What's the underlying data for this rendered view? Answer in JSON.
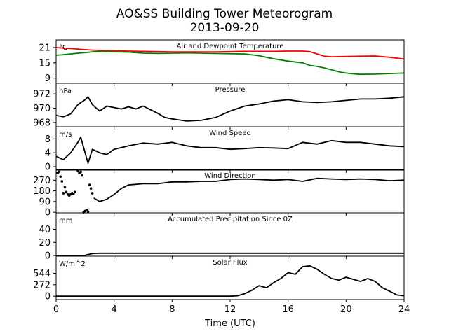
{
  "chart_data": {
    "type": "line",
    "title": "AO&SS Building Tower Meteorogram",
    "subtitle": "2013-09-20",
    "xlabel": "Time (UTC)",
    "x_ticks": [
      0,
      4,
      8,
      12,
      16,
      20,
      24
    ],
    "xlim": [
      0,
      24
    ],
    "panels": [
      {
        "title": "Air and Dewpoint Temperature",
        "unit": "°C",
        "ylim": [
          7,
          24
        ],
        "yticks": [
          9,
          15,
          21
        ],
        "series": [
          {
            "color": "#ff0000",
            "style": "line",
            "x": [
              0,
              0.5,
              1,
              1.5,
              2,
              2.5,
              3,
              4,
              5,
              6,
              7,
              8,
              9,
              10,
              11,
              12,
              13,
              14,
              15,
              16,
              17,
              17.5,
              18,
              18.5,
              19,
              20,
              21,
              22,
              23,
              24
            ],
            "y": [
              21,
              20.8,
              20.6,
              20.4,
              20.2,
              20,
              19.9,
              19.7,
              19.6,
              19.5,
              19.4,
              19.3,
              19.3,
              19.3,
              19.3,
              19.4,
              19.5,
              19.5,
              19.5,
              19.6,
              19.6,
              19.4,
              18.5,
              17.6,
              17.4,
              17.5,
              17.6,
              17.7,
              17.2,
              16.5
            ]
          },
          {
            "color": "#008000",
            "style": "line",
            "x": [
              0,
              0.5,
              1,
              1.5,
              2,
              2.5,
              3,
              4,
              5,
              6,
              7,
              8,
              9,
              10,
              11,
              12,
              13,
              14,
              15,
              16,
              17,
              17.5,
              18,
              18.5,
              19,
              19.5,
              20,
              20.5,
              21,
              22,
              23,
              24
            ],
            "y": [
              18,
              18.2,
              18.5,
              18.8,
              19,
              19.3,
              19.5,
              19.3,
              19.2,
              18.8,
              18.7,
              18.8,
              18.9,
              18.8,
              18.7,
              18.6,
              18.5,
              17.8,
              16.6,
              15.7,
              15,
              14,
              13.6,
              13,
              12.3,
              11.5,
              11,
              10.7,
              10.5,
              10.6,
              10.8,
              11
            ]
          }
        ]
      },
      {
        "title": "Pressure",
        "unit": "hPa",
        "ylim": [
          967.4,
          973.5
        ],
        "yticks": [
          968,
          970,
          972
        ],
        "series": [
          {
            "color": "#000000",
            "style": "line",
            "x": [
              0,
              0.5,
              1,
              1.5,
              2,
              2.2,
              2.5,
              3,
              3.5,
              4,
              4.5,
              5,
              5.5,
              6,
              6.5,
              7,
              7.5,
              8,
              9,
              10,
              11,
              12,
              13,
              14,
              15,
              16,
              17,
              18,
              19,
              20,
              21,
              22,
              23,
              24
            ],
            "y": [
              969,
              968.8,
              969.2,
              970.5,
              971.2,
              971.6,
              970.5,
              969.6,
              970.3,
              970.1,
              969.9,
              970.2,
              969.9,
              970.3,
              969.8,
              969.3,
              968.7,
              968.5,
              968.2,
              968.3,
              968.7,
              969.6,
              970.3,
              970.6,
              971,
              971.2,
              970.9,
              970.8,
              970.9,
              971.1,
              971.3,
              971.3,
              971.4,
              971.6
            ]
          }
        ]
      },
      {
        "title": "Wind Speed",
        "unit": "m/s",
        "ylim": [
          -1,
          11.5
        ],
        "yticks": [
          0,
          4,
          8
        ],
        "series": [
          {
            "color": "#000000",
            "style": "line",
            "x": [
              0,
              0.5,
              1,
              1.5,
              1.7,
              2,
              2.2,
              2.5,
              3,
              3.5,
              4,
              5,
              6,
              7,
              8,
              9,
              10,
              11,
              12,
              13,
              14,
              15,
              16,
              17,
              18,
              19,
              20,
              21,
              22,
              23,
              24
            ],
            "y": [
              3,
              2,
              4,
              7,
              8.5,
              4,
              1,
              5,
              4,
              3.5,
              5,
              6,
              6.8,
              6.5,
              7,
              6,
              5.5,
              5.5,
              5,
              5.2,
              5.5,
              5.4,
              5.2,
              7,
              6.5,
              7.5,
              7,
              7,
              6.5,
              6,
              5.8
            ]
          }
        ]
      },
      {
        "title": "Wind Direction",
        "unit": "",
        "ylim": [
          -5,
          360
        ],
        "yticks": [
          0,
          90,
          180,
          270
        ],
        "series": [
          {
            "color": "#000000",
            "style": "line",
            "x": [
              2.6,
              3,
              3.5,
              4,
              4.5,
              5,
              6,
              7,
              8,
              9,
              10,
              11,
              12,
              13,
              14,
              15,
              16,
              17,
              18,
              19,
              20,
              21,
              22,
              23,
              24
            ],
            "y": [
              120,
              90,
              110,
              150,
              200,
              230,
              240,
              240,
              255,
              255,
              260,
              260,
              275,
              280,
              275,
              270,
              275,
              260,
              285,
              280,
              275,
              280,
              275,
              265,
              270
            ]
          },
          {
            "color": "#000000",
            "style": "markers",
            "x": [
              0.1,
              0.2,
              0.3,
              0.4,
              0.5,
              0.6,
              0.7,
              0.8,
              0.9,
              1.0,
              1.1,
              1.2,
              1.3,
              1.5,
              1.6,
              1.7,
              1.8,
              1.9,
              2.0,
              2.1,
              2.2,
              2.3,
              2.4,
              2.5
            ],
            "y": [
              330,
              340,
              300,
              260,
              160,
              210,
              170,
              150,
              140,
              150,
              160,
              155,
              170,
              350,
              330,
              340,
              310,
              0,
              10,
              20,
              5,
              230,
              200,
              160
            ]
          }
        ]
      },
      {
        "title": "Accumulated Precipitation Since 0Z",
        "unit": "mm",
        "ylim": [
          -1,
          65
        ],
        "yticks": [
          0,
          20,
          40
        ],
        "series": [
          {
            "color": "#000000",
            "style": "line",
            "x": [
              0,
              2,
              2.1,
              2.3,
              2.5,
              3,
              4,
              6,
              8,
              10,
              12,
              14,
              16,
              18,
              20,
              22,
              24
            ],
            "y": [
              0,
              0,
              1,
              2,
              3,
              3.5,
              3.5,
              3.5,
              3.5,
              3.5,
              3.5,
              3.5,
              3.5,
              3.5,
              3.5,
              3.5,
              3.5
            ]
          }
        ]
      },
      {
        "title": "Solar Flux",
        "unit": "W/m^2",
        "ylim": [
          -80,
          950
        ],
        "yticks": [
          0,
          272,
          544
        ],
        "series": [
          {
            "color": "#000000",
            "style": "line",
            "x": [
              0,
              12,
              12.5,
              13,
              13.5,
              14,
              14.5,
              15,
              15.5,
              16,
              16.5,
              17,
              17.5,
              18,
              18.5,
              19,
              19.5,
              20,
              20.5,
              21,
              21.5,
              22,
              22.5,
              23,
              23.5,
              24
            ],
            "y": [
              0,
              0,
              10,
              60,
              140,
              250,
              200,
              320,
              420,
              560,
              520,
              700,
              720,
              640,
              520,
              420,
              380,
              450,
              400,
              350,
              420,
              350,
              200,
              120,
              30,
              10
            ]
          }
        ]
      }
    ]
  }
}
